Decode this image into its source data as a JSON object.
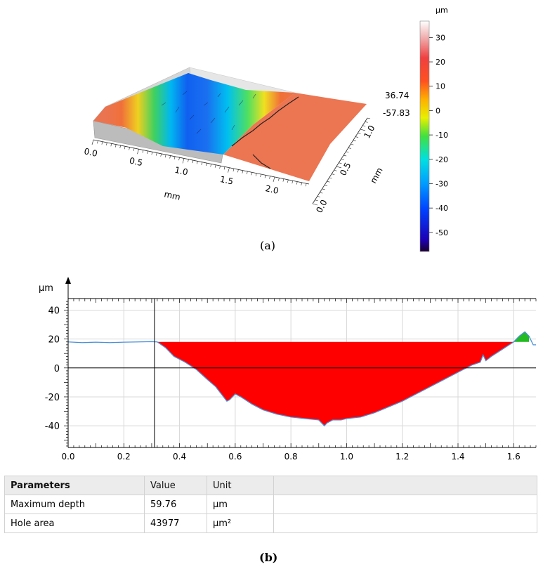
{
  "chart_data": [
    {
      "type": "surface3d",
      "caption": "(a)",
      "xlabel": "mm",
      "ylabel": "mm",
      "x_ticks": [
        "0.0",
        "0.5",
        "1.0",
        "1.5",
        "2.0"
      ],
      "y_ticks": [
        "0.0",
        "0.5",
        "1.0"
      ],
      "z_max_label": "36.74",
      "z_min_label": "-57.83",
      "colorbar": {
        "unit": "µm",
        "ticks": [
          30,
          20,
          10,
          0,
          -10,
          -20,
          -30,
          -40,
          -50
        ],
        "range": [
          -57.83,
          36.74
        ],
        "colors": [
          "#1a0030",
          "#1c00b4",
          "#0040ff",
          "#00a0ff",
          "#00e0e0",
          "#40e040",
          "#e8f000",
          "#ffb000",
          "#ff5020",
          "#f04040",
          "#f0b0b0",
          "#ffffff"
        ]
      }
    },
    {
      "type": "area",
      "caption": "(b)",
      "ylabel": "µm",
      "xlim": [
        0.0,
        1.68
      ],
      "ylim": [
        -55,
        48
      ],
      "x_ticks": [
        0.0,
        0.2,
        0.4,
        0.6,
        0.8,
        1.0,
        1.2,
        1.4,
        1.6
      ],
      "y_ticks": [
        40,
        20,
        0,
        -20,
        -40
      ],
      "reference_level": 18,
      "cursor_x": 0.31,
      "profile": {
        "x": [
          0.0,
          0.05,
          0.1,
          0.15,
          0.2,
          0.25,
          0.3,
          0.32,
          0.35,
          0.38,
          0.42,
          0.46,
          0.5,
          0.53,
          0.55,
          0.57,
          0.58,
          0.6,
          0.62,
          0.66,
          0.7,
          0.75,
          0.8,
          0.85,
          0.9,
          0.92,
          0.93,
          0.95,
          0.98,
          1.0,
          1.05,
          1.1,
          1.15,
          1.2,
          1.25,
          1.3,
          1.35,
          1.4,
          1.45,
          1.48,
          1.49,
          1.5,
          1.52,
          1.56,
          1.6,
          1.62,
          1.64,
          1.655,
          1.67,
          1.68
        ],
        "y": [
          18,
          17.5,
          17.8,
          17.5,
          17.8,
          18,
          18.2,
          18,
          14,
          8,
          4,
          -1,
          -8,
          -13,
          -18,
          -23,
          -22,
          -18,
          -20,
          -25,
          -29,
          -32,
          -34,
          -35,
          -36,
          -40,
          -38,
          -36,
          -36,
          -35,
          -34,
          -31,
          -27,
          -23,
          -18,
          -13,
          -8,
          -3,
          2,
          4,
          9,
          5,
          8,
          13,
          18,
          22,
          25,
          22,
          16,
          16
        ]
      },
      "fill_colors": {
        "hole": "#ff0000",
        "bump": "#22bb22",
        "line": "#4a90d9"
      }
    }
  ],
  "table": {
    "headers": [
      "Parameters",
      "Value",
      "Unit"
    ],
    "rows": [
      [
        "Maximum depth",
        "59.76",
        "µm"
      ],
      [
        "Hole area",
        "43977",
        "µm²"
      ]
    ]
  }
}
